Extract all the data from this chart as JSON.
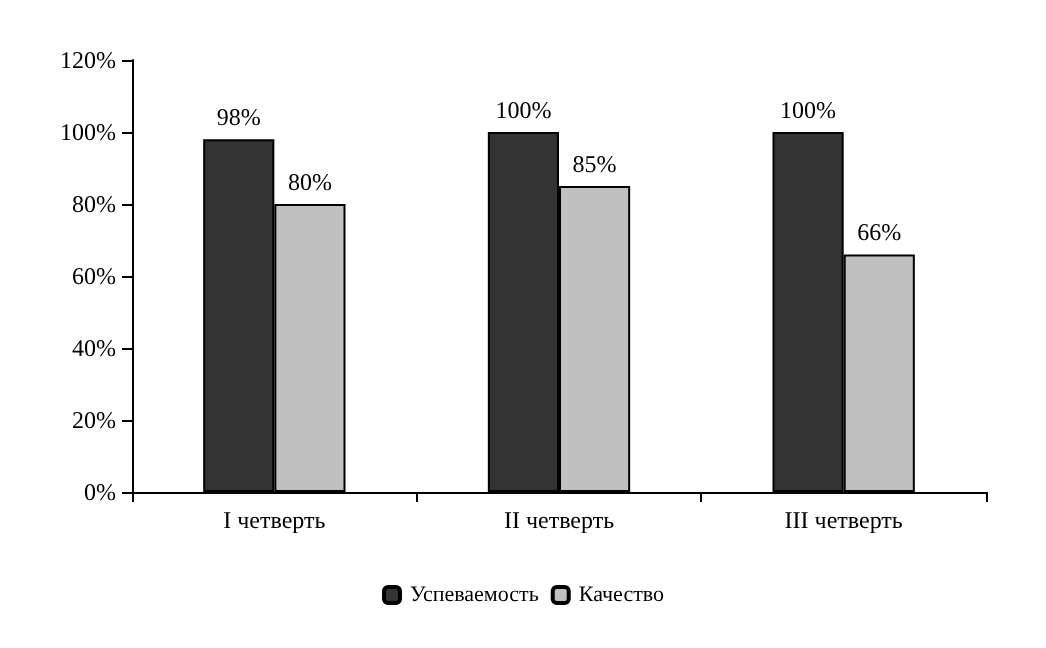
{
  "chart_data": {
    "type": "bar",
    "categories": [
      "I четверть",
      "II четверть",
      "III четверть"
    ],
    "series": [
      {
        "name": "Успеваемость",
        "color": "#333333",
        "values": [
          98,
          100,
          100
        ],
        "value_labels": [
          "98%",
          "100%",
          "100%"
        ]
      },
      {
        "name": "Качество",
        "color": "#c0c0c0",
        "values": [
          80,
          85,
          66
        ],
        "value_labels": [
          "80%",
          "85%",
          "66%"
        ]
      }
    ],
    "ylim": [
      0,
      120
    ],
    "yticks": [
      {
        "value": 0,
        "label": "0%"
      },
      {
        "value": 20,
        "label": "20%"
      },
      {
        "value": 40,
        "label": "40%"
      },
      {
        "value": 60,
        "label": "60%"
      },
      {
        "value": 80,
        "label": "80%"
      },
      {
        "value": 100,
        "label": "100%"
      },
      {
        "value": 120,
        "label": "120%"
      }
    ],
    "grid": false,
    "legend": "bottom"
  }
}
